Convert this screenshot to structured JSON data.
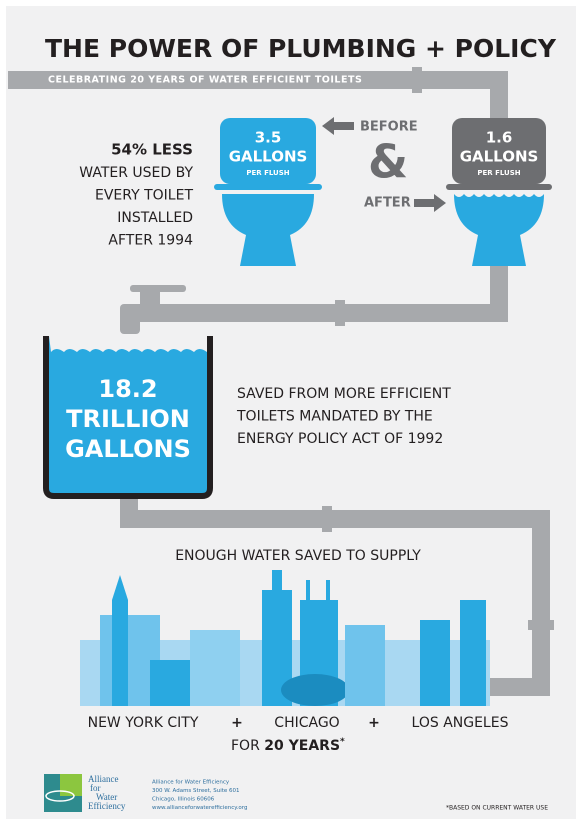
{
  "header": {
    "title": "THE POWER OF PLUMBING + POLICY",
    "subtitle": "CELEBRATING 20 YEARS OF WATER EFFICIENT TOILETS"
  },
  "reduction": {
    "headline": "54% LESS",
    "lines": [
      "WATER USED BY",
      "EVERY TOILET",
      "INSTALLED",
      "AFTER 1994"
    ]
  },
  "before_toilet": {
    "amount": "3.5",
    "unit": "GALLONS",
    "per": "PER FLUSH",
    "label": "BEFORE"
  },
  "ampersand": "&",
  "after_toilet": {
    "amount": "1.6",
    "unit": "GALLONS",
    "per": "PER FLUSH",
    "label": "AFTER"
  },
  "tank": {
    "lines": [
      "18.2",
      "TRILLION",
      "GALLONS"
    ]
  },
  "savings": {
    "lines": [
      "SAVED FROM MORE EFFICIENT",
      "TOILETS MANDATED BY THE",
      "ENERGY POLICY ACT OF 1992"
    ]
  },
  "supply": {
    "heading": "ENOUGH WATER SAVED TO SUPPLY",
    "cities": [
      "NEW YORK CITY",
      "+",
      "CHICAGO",
      "+",
      "LOS ANGELES"
    ],
    "duration_prefix": "FOR",
    "duration": "20 YEARS",
    "footnote_mark": "*"
  },
  "footer": {
    "logo": [
      "Alliance",
      "for",
      "Water",
      "Efficiency"
    ],
    "address": [
      "Alliance for Water Efficiency",
      "300 W. Adams Street, Suite 601",
      "Chicago, Illinois 60606",
      "www.allianceforwaterefficiency.org"
    ],
    "footnote": "*BASED ON CURRENT WATER USE"
  }
}
